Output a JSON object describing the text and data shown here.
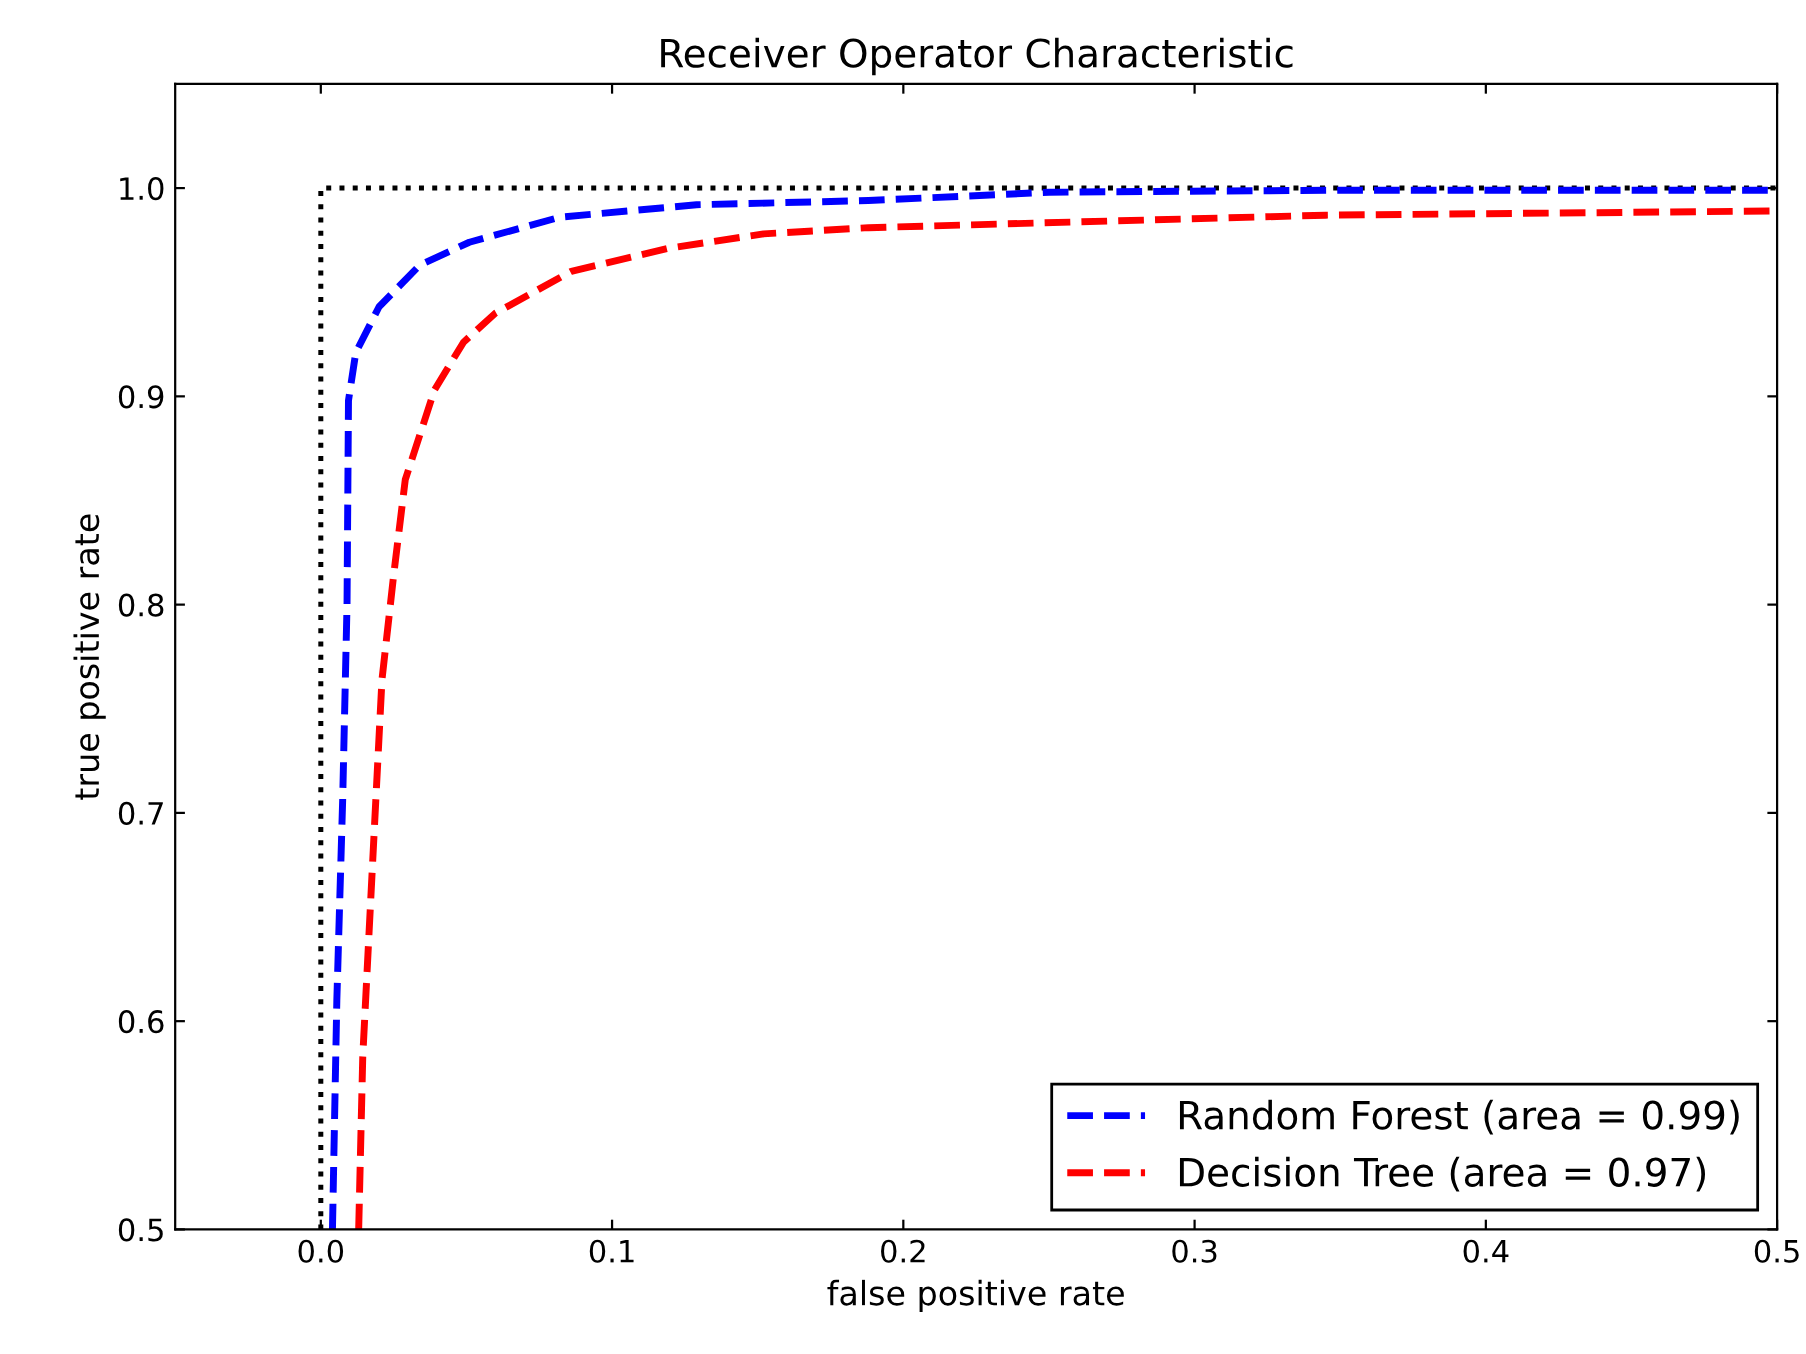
{
  "chart_data": {
    "type": "line",
    "title": "Receiver Operator Characteristic",
    "xlabel": "false positive rate",
    "ylabel": "true positive rate",
    "xlim": [
      -0.05,
      0.5
    ],
    "xticks": [
      {
        "value": 0,
        "label": "0.0"
      },
      0.1,
      0.2,
      0.3,
      0.4,
      0.5
    ],
    "ylim": [
      0.5,
      1.05
    ],
    "yticks": [
      0.5,
      0.6,
      0.7,
      0.8,
      0.9,
      {
        "value": 1,
        "label": "1.0"
      }
    ],
    "grid": false,
    "legend": "bottom right",
    "line_style": "dashed",
    "marker": "none",
    "series": [
      {
        "color": "#000000",
        "line_style": "dotted",
        "x": [
          0,
          0,
          0.5
        ],
        "values": [
          0.5,
          1,
          1
        ]
      },
      {
        "name": "Random Forest (area = 0.99)",
        "color": "#0000ff",
        "x": [
          0.004,
          0.0055,
          0.0075,
          0.009,
          0.0095,
          0.012,
          0.02,
          0.034,
          0.051,
          0.082,
          0.129,
          0.188,
          0.25,
          0.35,
          0.5
        ],
        "values": [
          0.5,
          0.61,
          0.706,
          0.8,
          0.898,
          0.921,
          0.943,
          0.963,
          0.974,
          0.986,
          0.992,
          0.994,
          0.998,
          0.999,
          0.999
        ]
      },
      {
        "name": "Decision Tree (area = 0.97)",
        "color": "#ff0000",
        "x": [
          0.013,
          0.0144,
          0.018,
          0.021,
          0.025,
          0.029,
          0.039,
          0.049,
          0.06,
          0.086,
          0.119,
          0.152,
          0.188,
          0.345,
          0.5
        ],
        "values": [
          0.5,
          0.583,
          0.682,
          0.764,
          0.814,
          0.86,
          0.903,
          0.926,
          0.94,
          0.96,
          0.971,
          0.978,
          0.981,
          0.987,
          0.989
        ]
      }
    ]
  }
}
